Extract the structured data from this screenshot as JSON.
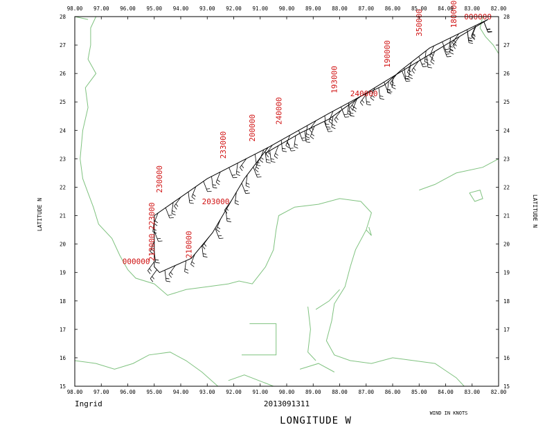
{
  "storm_name": "Ingrid",
  "datetime": "2013091311",
  "x_axis_title": "LONGITUDE  W",
  "y_axis_title_left": "LATITUDE  N",
  "y_axis_title_right": "LATITUDE  N",
  "wind_note": "WIND IN KNOTS",
  "lon_ticks": [
    "98.00",
    "97.00",
    "96.00",
    "95.00",
    "94.00",
    "93.00",
    "92.00",
    "91.00",
    "90.00",
    "89.00",
    "88.00",
    "87.00",
    "86.00",
    "85.00",
    "84.00",
    "83.00",
    "82.00"
  ],
  "lat_ticks": [
    "28",
    "27",
    "26",
    "25",
    "24",
    "23",
    "22",
    "21",
    "20",
    "19",
    "18",
    "17",
    "16",
    "15"
  ],
  "colors": {
    "coast": "#7fc27f",
    "track": "#000000",
    "labels": "#d01010"
  },
  "track_legs": [
    {
      "points": [
        [
          -82.4,
          27.9
        ],
        [
          -85.8,
          26.0
        ],
        [
          -87.2,
          25.2
        ],
        [
          -88.4,
          24.6
        ],
        [
          -90.7,
          23.4
        ],
        [
          -93.0,
          22.3
        ],
        [
          -95.0,
          21.0
        ],
        [
          -95.0,
          19.2
        ],
        [
          -94.8,
          19.0
        ],
        [
          -93.6,
          19.5
        ],
        [
          -92.8,
          20.4
        ],
        [
          -91.6,
          22.3
        ],
        [
          -90.7,
          23.4
        ]
      ]
    },
    {
      "points": [
        [
          -82.4,
          27.9
        ],
        [
          -84.6,
          26.9
        ],
        [
          -85.7,
          26.1
        ],
        [
          -86.3,
          25.6
        ],
        [
          -87.2,
          25.2
        ],
        [
          -88.4,
          24.4
        ],
        [
          -89.5,
          23.9
        ],
        [
          -90.8,
          23.2
        ]
      ]
    }
  ],
  "time_labels": [
    {
      "text": "223000",
      "lon": -95.0,
      "lat": 20.5,
      "vertical": true
    },
    {
      "text": "230000",
      "lon": -94.7,
      "lat": 21.8,
      "vertical": true
    },
    {
      "text": "233000",
      "lon": -92.3,
      "lat": 23.0,
      "vertical": true
    },
    {
      "text": "200000",
      "lon": -91.2,
      "lat": 23.6,
      "vertical": true
    },
    {
      "text": "240000",
      "lon": -90.2,
      "lat": 24.2,
      "vertical": true
    },
    {
      "text": "193000",
      "lon": -88.1,
      "lat": 25.3,
      "vertical": true
    },
    {
      "text": "190000",
      "lon": -86.1,
      "lat": 26.2,
      "vertical": true
    },
    {
      "text": "350000",
      "lon": -84.9,
      "lat": 27.3,
      "vertical": true
    },
    {
      "text": "180000",
      "lon": -83.6,
      "lat": 27.6,
      "vertical": true
    },
    {
      "text": "213000",
      "lon": -95.0,
      "lat": 19.4,
      "vertical": true
    },
    {
      "text": "210000",
      "lon": -93.6,
      "lat": 19.5,
      "vertical": true
    },
    {
      "text": "203000",
      "lon": -93.2,
      "lat": 21.4,
      "vertical": false
    },
    {
      "text": "000000",
      "lon": -96.2,
      "lat": 19.3,
      "vertical": false
    },
    {
      "text": "240000",
      "lon": -87.6,
      "lat": 25.2,
      "vertical": false
    },
    {
      "text": "000000",
      "lon": -83.3,
      "lat": 27.9,
      "vertical": false
    }
  ],
  "coastlines": [
    [
      [
        -97.2,
        28.0
      ],
      [
        -97.4,
        27.6
      ],
      [
        -97.4,
        27.0
      ],
      [
        -97.5,
        26.5
      ],
      [
        -97.2,
        26.0
      ],
      [
        -97.6,
        25.5
      ],
      [
        -97.5,
        24.8
      ],
      [
        -97.7,
        24.0
      ],
      [
        -97.8,
        23.0
      ],
      [
        -97.7,
        22.3
      ],
      [
        -97.5,
        21.8
      ],
      [
        -97.3,
        21.3
      ],
      [
        -97.1,
        20.7
      ],
      [
        -96.6,
        20.2
      ],
      [
        -96.3,
        19.6
      ],
      [
        -96.0,
        19.1
      ],
      [
        -95.7,
        18.8
      ],
      [
        -95.0,
        18.6
      ],
      [
        -94.5,
        18.2
      ],
      [
        -93.8,
        18.4
      ],
      [
        -93.0,
        18.5
      ],
      [
        -92.2,
        18.6
      ],
      [
        -91.8,
        18.7
      ],
      [
        -91.3,
        18.6
      ],
      [
        -90.8,
        19.2
      ],
      [
        -90.5,
        19.8
      ],
      [
        -90.4,
        20.5
      ],
      [
        -90.3,
        21.0
      ],
      [
        -89.7,
        21.3
      ],
      [
        -88.8,
        21.4
      ],
      [
        -88.0,
        21.6
      ],
      [
        -87.2,
        21.5
      ],
      [
        -86.8,
        21.1
      ],
      [
        -87.0,
        20.5
      ],
      [
        -87.4,
        19.8
      ],
      [
        -87.6,
        19.2
      ],
      [
        -87.8,
        18.5
      ],
      [
        -88.2,
        17.9
      ],
      [
        -88.3,
        17.3
      ],
      [
        -88.5,
        16.6
      ],
      [
        -88.2,
        16.1
      ],
      [
        -87.6,
        15.9
      ],
      [
        -86.8,
        15.8
      ],
      [
        -86.0,
        16.0
      ],
      [
        -85.2,
        15.9
      ],
      [
        -84.4,
        15.8
      ],
      [
        -83.6,
        15.3
      ],
      [
        -83.3,
        15.0
      ]
    ],
    [
      [
        -98.0,
        15.9
      ],
      [
        -97.2,
        15.8
      ],
      [
        -96.5,
        15.6
      ],
      [
        -95.8,
        15.8
      ],
      [
        -95.2,
        16.1
      ],
      [
        -94.4,
        16.2
      ],
      [
        -93.8,
        15.9
      ],
      [
        -93.2,
        15.5
      ],
      [
        -92.6,
        15.0
      ]
    ],
    [
      [
        -98.0,
        28.0
      ],
      [
        -97.5,
        27.9
      ]
    ],
    [
      [
        -82.6,
        28.0
      ],
      [
        -82.7,
        27.6
      ],
      [
        -82.5,
        27.3
      ],
      [
        -82.2,
        27.0
      ],
      [
        -82.0,
        26.7
      ]
    ],
    [
      [
        -85.0,
        21.9
      ],
      [
        -84.4,
        22.1
      ],
      [
        -83.6,
        22.5
      ],
      [
        -82.6,
        22.7
      ],
      [
        -82.0,
        23.0
      ]
    ],
    [
      [
        -83.1,
        21.8
      ],
      [
        -82.9,
        21.5
      ],
      [
        -82.6,
        21.6
      ],
      [
        -82.7,
        21.9
      ],
      [
        -83.1,
        21.8
      ]
    ],
    [
      [
        -87.0,
        20.5
      ],
      [
        -86.8,
        20.3
      ],
      [
        -86.9,
        20.6
      ]
    ],
    [
      [
        -89.2,
        17.8
      ],
      [
        -89.1,
        17.0
      ],
      [
        -89.2,
        16.2
      ],
      [
        -88.9,
        15.9
      ]
    ],
    [
      [
        -91.4,
        17.2
      ],
      [
        -90.4,
        17.2
      ],
      [
        -90.4,
        16.1
      ],
      [
        -91.7,
        16.1
      ]
    ],
    [
      [
        -92.2,
        15.2
      ],
      [
        -91.6,
        15.4
      ],
      [
        -90.5,
        15.0
      ]
    ],
    [
      [
        -88.9,
        17.7
      ],
      [
        -88.4,
        18.0
      ],
      [
        -88.0,
        18.4
      ]
    ],
    [
      [
        -89.5,
        15.6
      ],
      [
        -88.8,
        15.8
      ],
      [
        -88.2,
        15.5
      ]
    ]
  ]
}
